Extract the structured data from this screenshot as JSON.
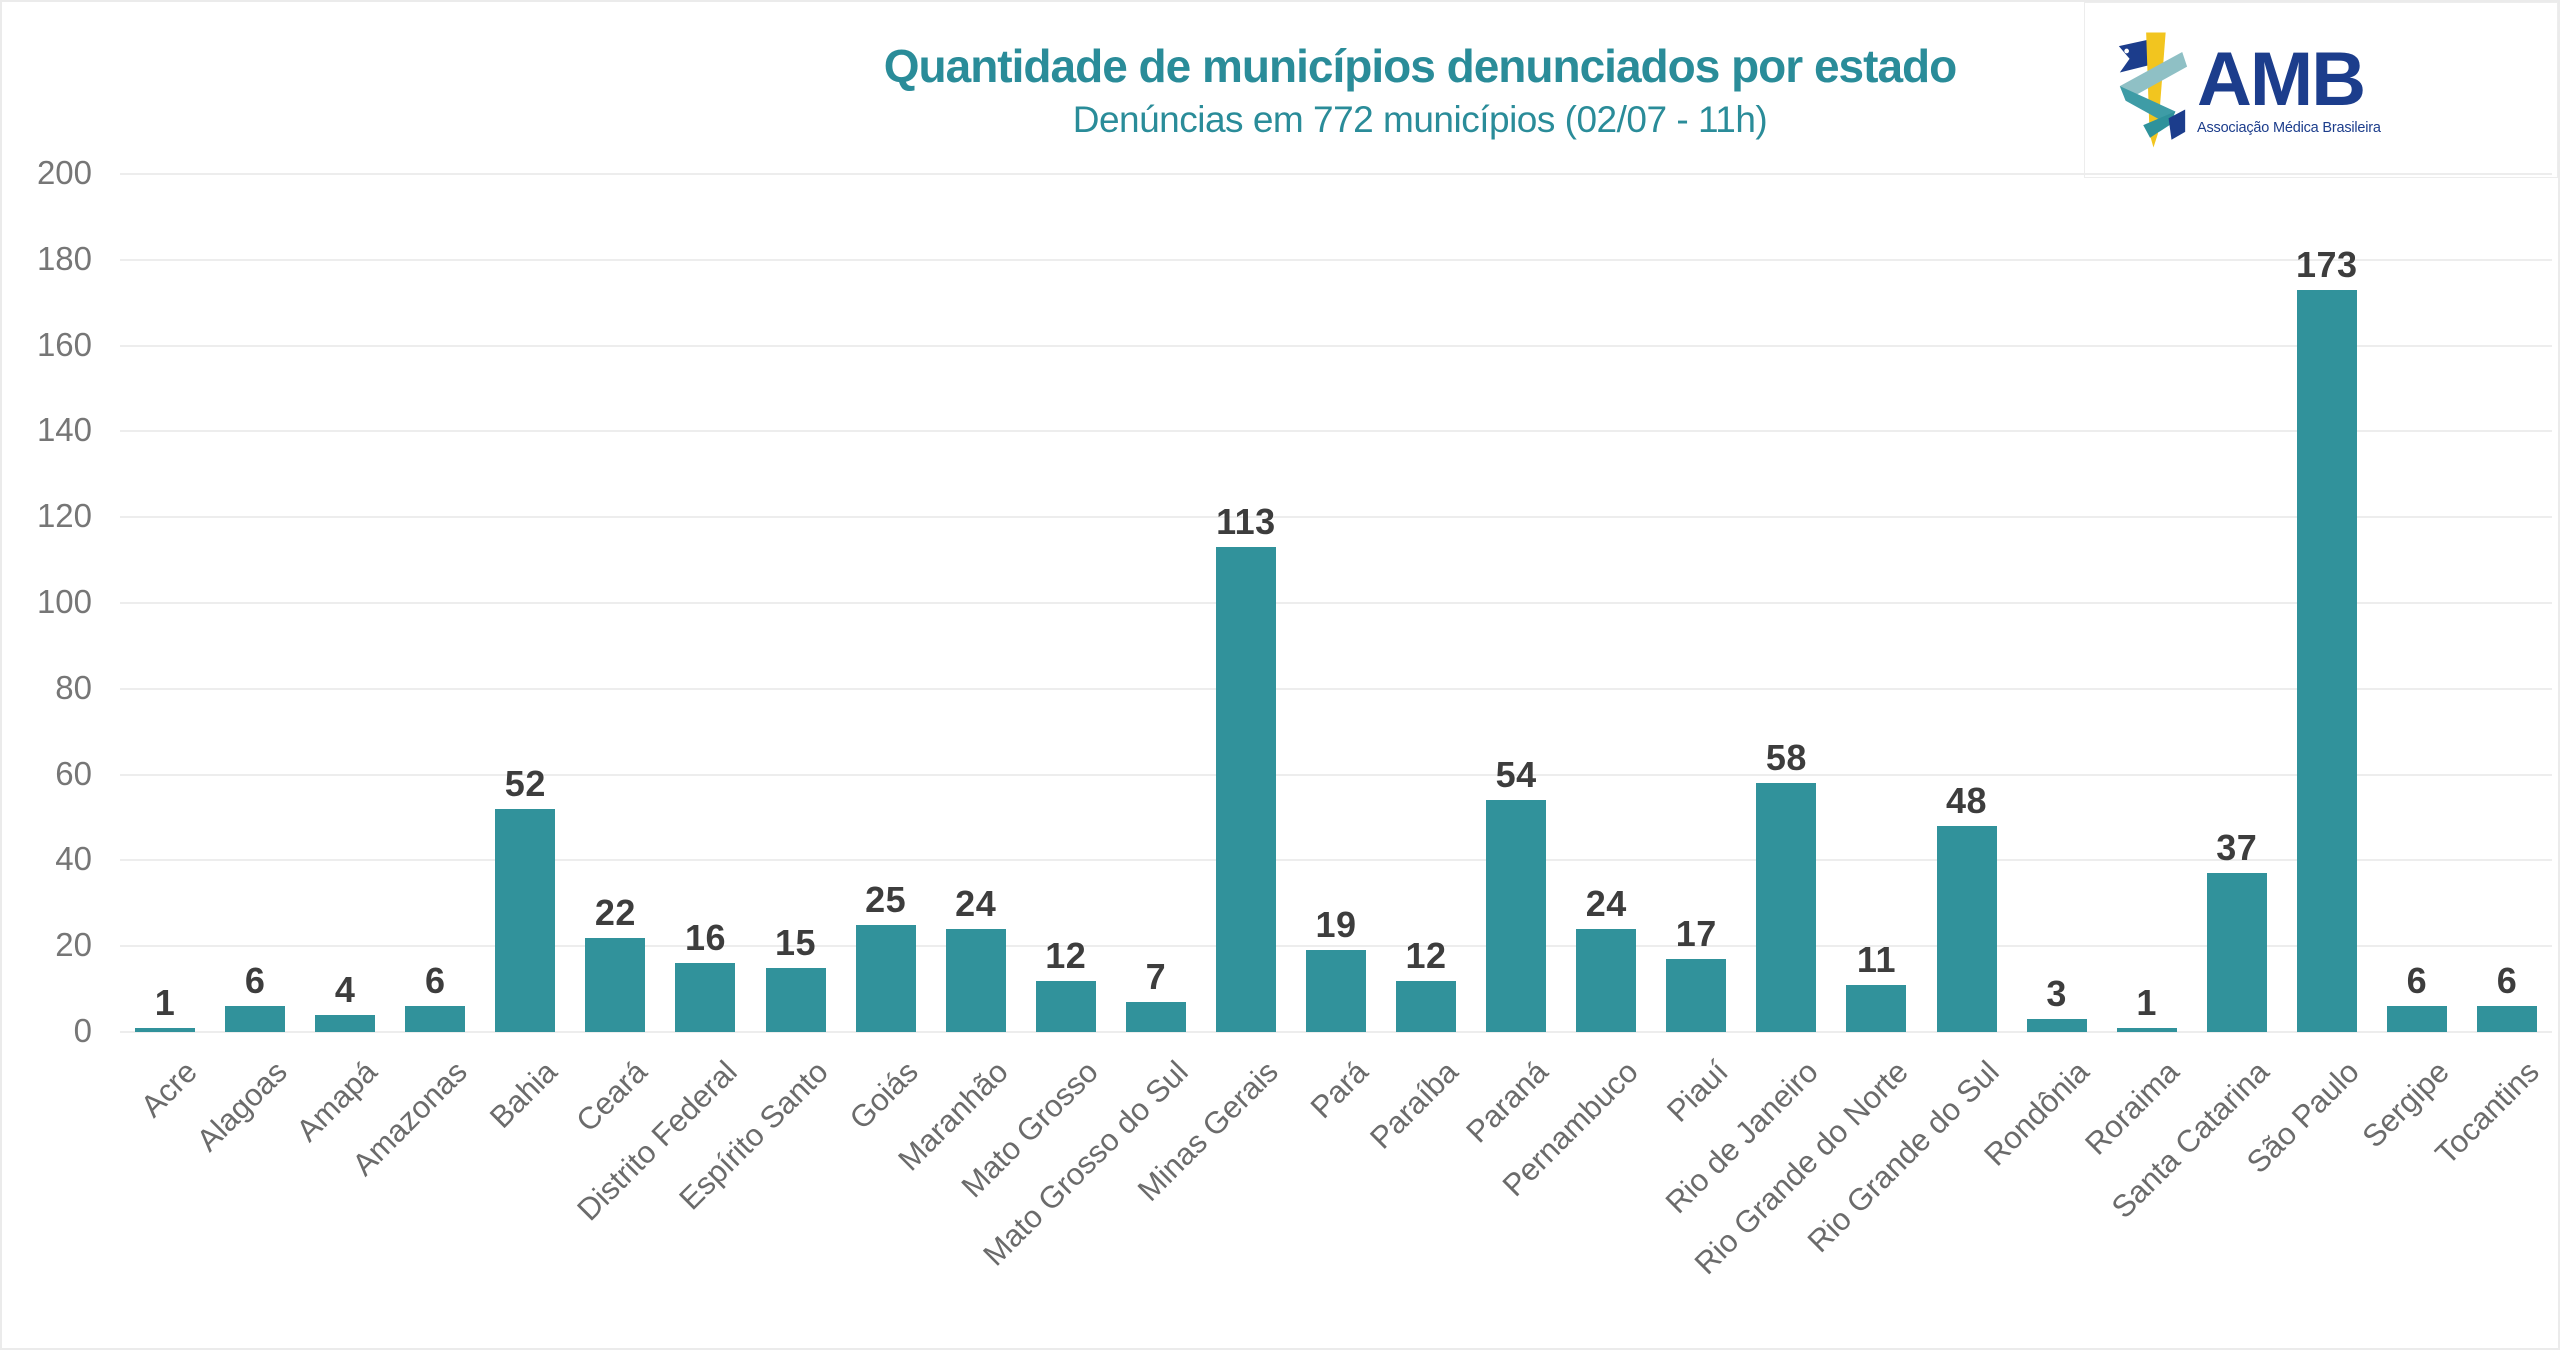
{
  "header": {
    "title": "Quantidade de municípios denunciados por estado",
    "subtitle": "Denúncias em 772 municípios (02/07 - 11h)"
  },
  "logo": {
    "acronym": "AMB",
    "full_name": "Associação Médica Brasileira",
    "icon": "caduceus-sword-ribbon-icon"
  },
  "colors": {
    "title_teal": "#2A8C99",
    "bar_teal": "#31929B",
    "value_label": "#3D3D3D",
    "axis_label": "#6B6B6B",
    "ytick_label": "#767676",
    "gridline": "#EDEDED",
    "logo_navy": "#1C3D8C",
    "logo_yellow": "#F2C51F",
    "logo_ribbon_light": "#8FC0C5",
    "logo_ribbon_dark": "#3E9CA6"
  },
  "chart_data": {
    "type": "bar",
    "title": "Quantidade de municípios denunciados por estado",
    "subtitle": "Denúncias em 772 municípios (02/07 - 11h)",
    "categories": [
      "Acre",
      "Alagoas",
      "Amapá",
      "Amazonas",
      "Bahia",
      "Ceará",
      "Distrito Federal",
      "Espírito Santo",
      "Goiás",
      "Maranhão",
      "Mato Grosso",
      "Mato Grosso do Sul",
      "Minas Gerais",
      "Pará",
      "Paraíba",
      "Paraná",
      "Pernambuco",
      "Piauí",
      "Rio de Janeiro",
      "Rio Grande do Norte",
      "Rio Grande do Sul",
      "Rondônia",
      "Roraima",
      "Santa Catarina",
      "São Paulo",
      "Sergipe",
      "Tocantins"
    ],
    "values": [
      1,
      6,
      4,
      6,
      52,
      22,
      16,
      15,
      25,
      24,
      12,
      7,
      113,
      19,
      12,
      54,
      24,
      17,
      58,
      11,
      48,
      3,
      1,
      37,
      173,
      6,
      6
    ],
    "xlabel": "",
    "ylabel": "",
    "ylim": [
      0,
      200
    ],
    "yticks": [
      0,
      20,
      40,
      60,
      80,
      100,
      120,
      140,
      160,
      180,
      200
    ],
    "grid": true,
    "legend": "none",
    "bar_color": "#31929B",
    "value_labels_shown": true
  }
}
